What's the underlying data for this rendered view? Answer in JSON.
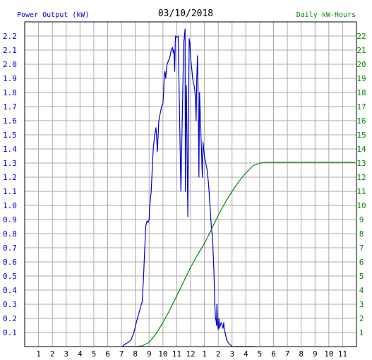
{
  "chart_data": {
    "type": "line",
    "title": "03/10/2018",
    "ylabel": "Power Output (kW)",
    "y2label": "Daily kW-Hours",
    "ylim": [
      0,
      2.3
    ],
    "y2lim": [
      0,
      23
    ],
    "xlim": [
      0,
      24
    ],
    "x_ticks": [
      "1",
      "2",
      "3",
      "4",
      "5",
      "6",
      "7",
      "8",
      "9",
      "10",
      "11",
      "12",
      "1",
      "2",
      "3",
      "4",
      "5",
      "6",
      "7",
      "8",
      "9",
      "10",
      "11"
    ],
    "y_ticks": [
      "0.1",
      "0.2",
      "0.3",
      "0.4",
      "0.5",
      "0.6",
      "0.7",
      "0.8",
      "0.9",
      "1.0",
      "1.1",
      "1.2",
      "1.3",
      "1.4",
      "1.5",
      "1.6",
      "1.7",
      "1.8",
      "1.9",
      "2.0",
      "2.1",
      "2.2"
    ],
    "y2_ticks": [
      "1",
      "2",
      "3",
      "4",
      "5",
      "6",
      "7",
      "8",
      "9",
      "10",
      "11",
      "12",
      "13",
      "14",
      "15",
      "16",
      "17",
      "18",
      "19",
      "20",
      "21",
      "22"
    ],
    "grid": true,
    "colors": {
      "power": "#0000cc",
      "energy": "#008800",
      "grid": "#aaaaaa"
    },
    "series": [
      {
        "axis": "left",
        "color": "#0000cc",
        "x": [
          7.05,
          7.3,
          7.5,
          7.7,
          7.9,
          8.1,
          8.3,
          8.5,
          8.6,
          8.75,
          8.85,
          8.92,
          9.0,
          9.05,
          9.15,
          9.25,
          9.3,
          9.4,
          9.5,
          9.6,
          9.7,
          9.8,
          9.9,
          10.0,
          10.05,
          10.1,
          10.15,
          10.2,
          10.3,
          10.5,
          10.6,
          10.7,
          10.75,
          10.8,
          10.85,
          10.9,
          11.0,
          11.1,
          11.3,
          11.5,
          11.6,
          11.62,
          11.65,
          11.7,
          11.8,
          11.9,
          11.95,
          12.0,
          12.05,
          12.1,
          12.15,
          12.2,
          12.25,
          12.3,
          12.35,
          12.4,
          12.45,
          12.5,
          12.55,
          12.6,
          12.65,
          12.7,
          12.72,
          12.75,
          12.8,
          12.85,
          12.9,
          13.0,
          13.1,
          13.2,
          13.3,
          13.4,
          13.5,
          13.6,
          13.7,
          13.75,
          13.8,
          13.85,
          13.88,
          13.9,
          13.95,
          14.0,
          14.05,
          14.1,
          14.2,
          14.3,
          14.35,
          14.4,
          14.45,
          14.5,
          14.6,
          14.7,
          14.8,
          14.9,
          15.0,
          15.1,
          15.2,
          15.3,
          15.4,
          15.45,
          15.5,
          15.55,
          15.6,
          15.65,
          15.7,
          15.75,
          15.8,
          15.9,
          16.0,
          16.05,
          16.1,
          16.15,
          16.2,
          16.3,
          16.4,
          16.5,
          16.6
        ],
        "y": [
          0.0,
          0.02,
          0.03,
          0.05,
          0.1,
          0.18,
          0.25,
          0.32,
          0.5,
          0.85,
          0.89,
          0.88,
          0.9,
          1.0,
          1.1,
          1.3,
          1.4,
          1.5,
          1.55,
          1.38,
          1.6,
          1.65,
          1.7,
          1.72,
          1.8,
          1.93,
          1.95,
          1.9,
          2.0,
          2.05,
          2.1,
          2.12,
          2.08,
          2.1,
          1.95,
          2.2,
          2.19,
          2.2,
          1.1,
          2.15,
          2.25,
          1.1,
          1.45,
          1.85,
          0.92,
          2.18,
          2.15,
          2.05,
          2.0,
          1.95,
          1.9,
          1.87,
          1.85,
          1.82,
          1.75,
          1.6,
          1.9,
          2.06,
          1.75,
          1.2,
          1.8,
          1.65,
          1.6,
          1.5,
          1.35,
          1.2,
          1.45,
          1.35,
          1.3,
          1.25,
          1.15,
          1.0,
          0.85,
          0.75,
          0.5,
          0.3,
          0.2,
          0.18,
          0.15,
          0.3,
          0.17,
          0.12,
          0.2,
          0.13,
          0.17,
          0.15,
          0.13,
          0.17,
          0.1,
          0.1,
          0.05,
          0.03,
          0.02,
          0.01,
          0.0,
          0.0,
          0.0,
          0.0,
          0.0,
          0.0,
          0.0,
          0.0,
          0.0,
          0.0,
          0.0,
          0.0,
          0.0,
          0.0,
          0.0,
          0.0,
          0.0,
          0.0,
          0.0,
          0.0,
          0.0,
          0.0,
          0.0
        ]
      },
      {
        "axis": "right",
        "color": "#008800",
        "x": [
          7.1,
          7.5,
          8.0,
          8.5,
          9.0,
          9.5,
          10.0,
          10.5,
          11.0,
          11.5,
          12.0,
          12.5,
          13.0,
          13.5,
          14.0,
          14.5,
          15.0,
          15.5,
          16.0,
          16.5,
          17.0,
          17.5,
          18.0,
          19.0,
          20.0,
          21.0,
          22.0,
          23.0,
          23.9
        ],
        "y": [
          0,
          0,
          0,
          0.05,
          0.3,
          0.9,
          1.7,
          2.6,
          3.6,
          4.6,
          5.6,
          6.5,
          7.3,
          8.3,
          9.3,
          10.2,
          11.0,
          11.7,
          12.3,
          12.8,
          13.0,
          13.05,
          13.05,
          13.05,
          13.05,
          13.05,
          13.05,
          13.05,
          13.05
        ]
      }
    ]
  }
}
